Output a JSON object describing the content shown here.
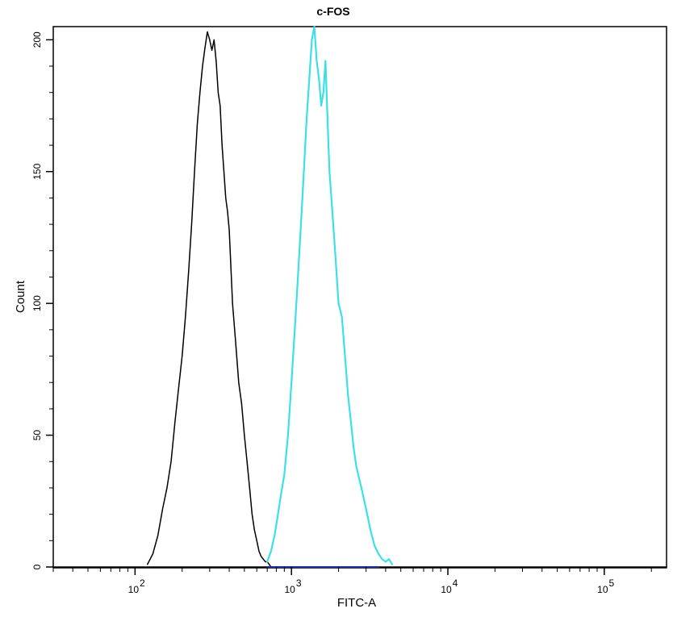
{
  "chart_data": {
    "type": "line",
    "title": "c-FOS",
    "xlabel": "FITC-A",
    "ylabel": "Count",
    "x_scale": "log",
    "xlim": [
      30,
      250000
    ],
    "ylim": [
      0,
      205
    ],
    "x_ticks": [
      {
        "value": 100,
        "base": "10",
        "exp": "2"
      },
      {
        "value": 1000,
        "base": "10",
        "exp": "3"
      },
      {
        "value": 10000,
        "base": "10",
        "exp": "4"
      },
      {
        "value": 100000,
        "base": "10",
        "exp": "5"
      }
    ],
    "y_ticks": [
      0,
      50,
      100,
      150,
      200
    ],
    "y_tick_labels": [
      "0",
      "50",
      "100",
      "150",
      "200"
    ],
    "grid": false,
    "legend": "none",
    "series": [
      {
        "color": "#000000",
        "x": [
          120,
          130,
          140,
          150,
          160,
          170,
          180,
          190,
          200,
          210,
          220,
          230,
          240,
          250,
          260,
          270,
          280,
          290,
          300,
          310,
          320,
          330,
          340,
          350,
          360,
          370,
          380,
          390,
          400,
          420,
          440,
          460,
          480,
          500,
          520,
          540,
          560,
          580,
          600,
          620,
          640,
          660,
          680,
          700,
          720,
          740
        ],
        "y": [
          1,
          5,
          12,
          22,
          30,
          40,
          55,
          68,
          80,
          95,
          112,
          130,
          150,
          168,
          180,
          190,
          197,
          203,
          200,
          196,
          200,
          192,
          180,
          175,
          160,
          150,
          140,
          135,
          128,
          100,
          85,
          70,
          62,
          50,
          40,
          30,
          20,
          14,
          10,
          6,
          4,
          3,
          2,
          2,
          1,
          0
        ]
      },
      {
        "color": "#3ce0e6",
        "x": [
          700,
          740,
          780,
          820,
          860,
          900,
          950,
          1000,
          1050,
          1100,
          1150,
          1200,
          1250,
          1300,
          1350,
          1400,
          1450,
          1500,
          1550,
          1600,
          1650,
          1700,
          1750,
          1800,
          1900,
          2000,
          2100,
          2200,
          2300,
          2400,
          2500,
          2600,
          2800,
          3000,
          3200,
          3400,
          3600,
          3800,
          4000,
          4200,
          4400
        ],
        "y": [
          2,
          6,
          12,
          20,
          28,
          35,
          50,
          70,
          90,
          110,
          130,
          150,
          170,
          185,
          200,
          205,
          192,
          185,
          175,
          180,
          192,
          170,
          150,
          140,
          120,
          100,
          95,
          80,
          65,
          55,
          45,
          38,
          30,
          22,
          14,
          8,
          5,
          3,
          2,
          3,
          1
        ]
      }
    ]
  }
}
